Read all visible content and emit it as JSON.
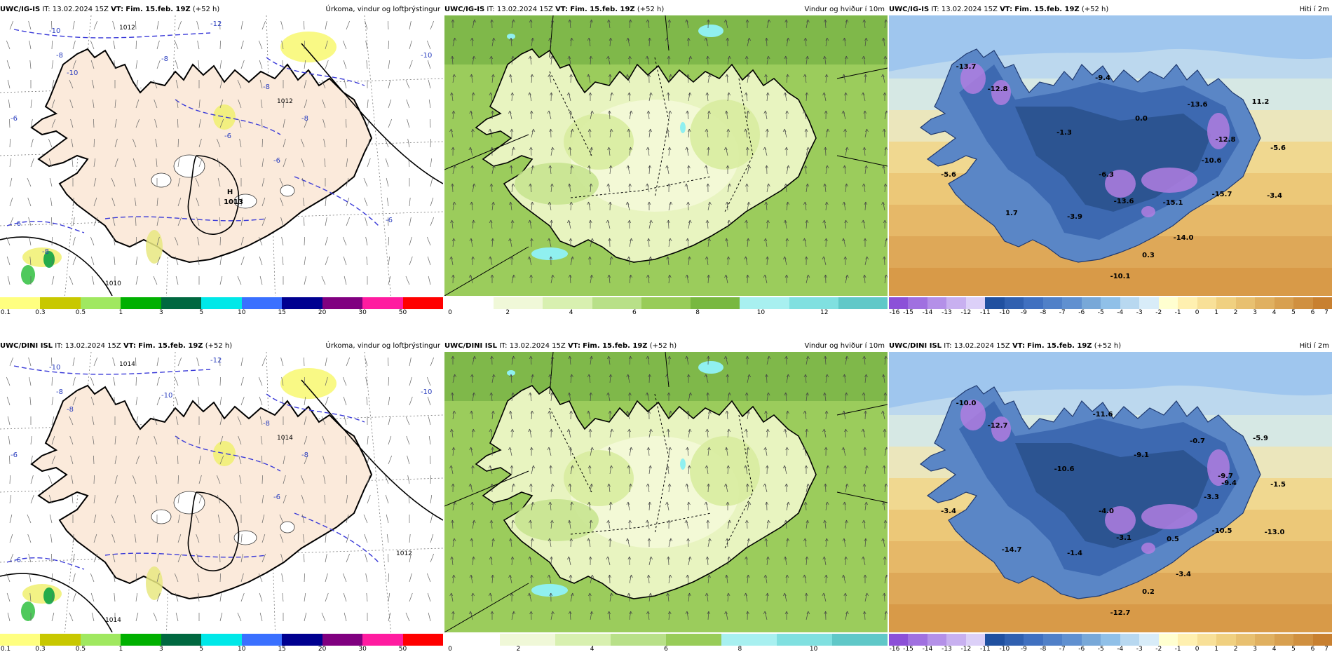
{
  "panels": [
    {
      "model": "UWC/IG-IS",
      "it": "IT: 13.02.2024 15Z",
      "vt_label": "VT:",
      "vt": "Fim. 15.feb. 19Z",
      "lead": "(+52 h)",
      "title": "Úrkoma, vindur og loftþrýstingur",
      "kind": "precip",
      "pressure_label": "H",
      "pressure_value": "1013",
      "isobars": [
        "1012",
        "1012",
        "1010"
      ],
      "isotherms": [
        "-10",
        "-12",
        "-10",
        "-8",
        "-8",
        "-10",
        "-8",
        "-8",
        "-6",
        "-6",
        "-6",
        "-6",
        "-6",
        "-8"
      ],
      "colorbar": {
        "colors": [
          "#ffff80",
          "#c8c800",
          "#a0e860",
          "#00b000",
          "#006840",
          "#00e8e8",
          "#3a70ff",
          "#000090",
          "#800080",
          "#ff1ca0",
          "#ff0000"
        ],
        "ticks": [
          "0.1",
          "0.3",
          "0.5",
          "1",
          "3",
          "5",
          "10",
          "15",
          "20",
          "30",
          "50"
        ]
      }
    },
    {
      "model": "UWC/IG-IS",
      "it": "IT: 13.02.2024 15Z",
      "vt_label": "VT:",
      "vt": "Fim. 15.feb. 19Z",
      "lead": "(+52 h)",
      "title": "Vindur og hviður í 10m",
      "kind": "wind",
      "colorbar": {
        "colors": [
          "#ffffff",
          "#f0f8d8",
          "#d8f0b0",
          "#b8e088",
          "#98cc58",
          "#78b840",
          "#a8f0f0",
          "#80e0e0",
          "#60c8c8"
        ],
        "ticks": [
          "0",
          "2",
          "4",
          "6",
          "8",
          "10",
          "12"
        ]
      }
    },
    {
      "model": "UWC/IG-IS",
      "it": "IT: 13.02.2024 15Z",
      "vt_label": "VT:",
      "vt": "Fim. 15.feb. 19Z",
      "lead": "(+52 h)",
      "title": "Hiti í 2m",
      "kind": "temp",
      "values": [
        "-13.7",
        "-12.8",
        "-9.4",
        "0.0",
        "-1.3",
        "-13.6",
        "11.2",
        "-12.8",
        "-5.6",
        "-10.6",
        "-6.3",
        "-5.6",
        "-13.6",
        "-15.1",
        "-15.7",
        "-3.4",
        "1.7",
        "-3.9",
        "-14.0",
        "0.3",
        "-10.1"
      ],
      "colorbar": {
        "colors": [
          "#8c50d8",
          "#a070e0",
          "#b490e8",
          "#c8b0f0",
          "#dcd0f8",
          "#2050a0",
          "#3060b0",
          "#4070c0",
          "#5080c8",
          "#6090d0",
          "#78a8d8",
          "#90c0e8",
          "#b8d8f0",
          "#d8ecf8",
          "#ffffd0",
          "#fff0b0",
          "#f8e098",
          "#f0d080",
          "#e8c070",
          "#e0b060",
          "#d8a050",
          "#d09040",
          "#c88030"
        ],
        "ticks": [
          "-16",
          "-15",
          "-14",
          "-13",
          "-12",
          "-11",
          "-10",
          "-9",
          "-8",
          "-7",
          "-6",
          "-5",
          "-4",
          "-3",
          "-2",
          "-1",
          "0",
          "1",
          "2",
          "3",
          "4",
          "5",
          "6",
          "7"
        ]
      }
    },
    {
      "model": "UWC/DINI ISL",
      "it": "IT: 13.02.2024 15Z",
      "vt_label": "VT:",
      "vt": "Fim. 15.feb. 19Z",
      "lead": "(+52 h)",
      "title": "Úrkoma, vindur og loftþrýstingur",
      "kind": "precip",
      "pressure_label": "",
      "pressure_value": "",
      "isobars": [
        "1014",
        "1014",
        "1014",
        "1012"
      ],
      "isotherms": [
        "-10",
        "-12",
        "-10",
        "-8",
        "-10",
        "-8",
        "-8",
        "-8",
        "-6",
        "-6",
        "-6"
      ],
      "colorbar": {
        "colors": [
          "#ffff80",
          "#c8c800",
          "#a0e860",
          "#00b000",
          "#006840",
          "#00e8e8",
          "#3a70ff",
          "#000090",
          "#800080",
          "#ff1ca0",
          "#ff0000"
        ],
        "ticks": [
          "0.1",
          "0.3",
          "0.5",
          "1",
          "3",
          "5",
          "10",
          "15",
          "20",
          "30",
          "50"
        ]
      }
    },
    {
      "model": "UWC/DINI ISL",
      "it": "IT: 13.02.2024 15Z",
      "vt_label": "VT:",
      "vt": "Fim. 15.feb. 19Z",
      "lead": "(+52 h)",
      "title": "Vindur og hviður í 10m",
      "kind": "wind",
      "colorbar": {
        "colors": [
          "#ffffff",
          "#f0f8d8",
          "#d8f0b0",
          "#b8e088",
          "#98cc58",
          "#a8f0f0",
          "#80e0e0",
          "#60c8c8"
        ],
        "ticks": [
          "0",
          "2",
          "4",
          "6",
          "8",
          "10"
        ]
      }
    },
    {
      "model": "UWC/DINI ISL",
      "it": "IT: 13.02.2024 15Z",
      "vt_label": "VT:",
      "vt": "Fim. 15.feb. 19Z",
      "lead": "(+52 h)",
      "title": "Hiti í 2m",
      "kind": "temp",
      "values": [
        "-10.0",
        "-12.7",
        "-11.6",
        "-9.1",
        "-10.6",
        "-0.7",
        "-5.9",
        "-9.7",
        "-1.5",
        "-3.3",
        "-4.0",
        "-3.4",
        "-3.1",
        "0.5",
        "-10.5",
        "-13.0",
        "-14.7",
        "-1.4",
        "-3.4",
        "0.2",
        "-12.7",
        "-9.4"
      ],
      "colorbar": {
        "colors": [
          "#8c50d8",
          "#a070e0",
          "#b490e8",
          "#c8b0f0",
          "#dcd0f8",
          "#2050a0",
          "#3060b0",
          "#4070c0",
          "#5080c8",
          "#6090d0",
          "#78a8d8",
          "#90c0e8",
          "#b8d8f0",
          "#d8ecf8",
          "#ffffd0",
          "#fff0b0",
          "#f8e098",
          "#f0d080",
          "#e8c070",
          "#e0b060",
          "#d8a050",
          "#d09040",
          "#c88030"
        ],
        "ticks": [
          "-16",
          "-15",
          "-14",
          "-13",
          "-12",
          "-11",
          "-10",
          "-9",
          "-8",
          "-7",
          "-6",
          "-5",
          "-4",
          "-3",
          "-2",
          "-1",
          "0",
          "1",
          "2",
          "3",
          "4",
          "5",
          "6",
          "7"
        ]
      }
    }
  ]
}
